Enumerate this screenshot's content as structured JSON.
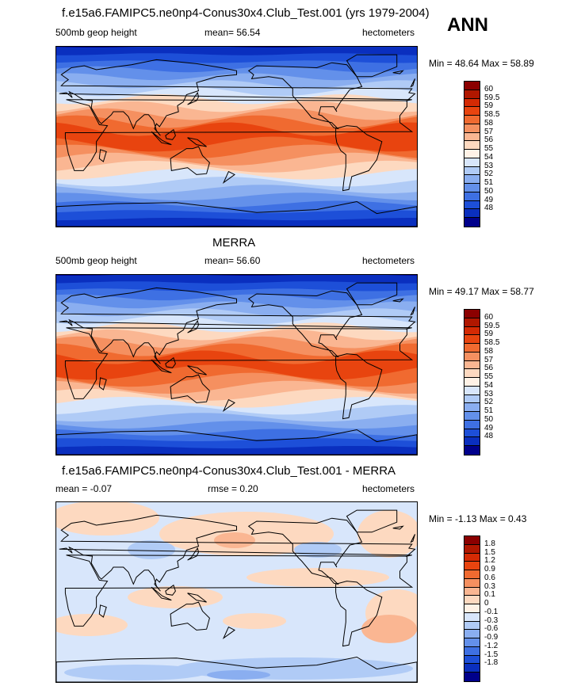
{
  "season": "ANN",
  "panel1": {
    "title": "f.e15a6.FAMIPC5.ne0np4-Conus30x4.Club_Test.001 (yrs 1979-2004)",
    "variable": "500mb geop height",
    "mean_text": "mean=  56.54",
    "units": "hectometers",
    "minmax": "Min = 48.64 Max = 58.89"
  },
  "panel2": {
    "title": "MERRA",
    "variable": "500mb geop height",
    "mean_text": "mean=  56.60",
    "units": "hectometers",
    "minmax": "Min = 49.17 Max = 58.77"
  },
  "panel3": {
    "title": "f.e15a6.FAMIPC5.ne0np4-Conus30x4.Club_Test.001 - MERRA",
    "mean_text": "mean =  -0.07",
    "rmse_text": "rmse =   0.20",
    "units": "hectometers",
    "minmax": "Min =  -1.13 Max =   0.43"
  },
  "colorbar_abs": {
    "labels": [
      "60",
      "59.5",
      "59",
      "58.5",
      "58",
      "57",
      "56",
      "55",
      "54",
      "53",
      "52",
      "51",
      "50",
      "49",
      "48"
    ],
    "colors": [
      "#8b0000",
      "#b01700",
      "#d42a04",
      "#e8440f",
      "#f06a30",
      "#f59060",
      "#fab692",
      "#fdd9c0",
      "#fff2e6",
      "#d8e6fb",
      "#b0cbf6",
      "#8aaef0",
      "#6390ea",
      "#3e70e3",
      "#1d4fd8",
      "#0a2fbf",
      "#00008b"
    ]
  },
  "colorbar_diff": {
    "labels": [
      "1.8",
      "1.5",
      "1.2",
      "0.9",
      "0.6",
      "0.3",
      "0.1",
      "0",
      "-0.1",
      "-0.3",
      "-0.6",
      "-0.9",
      "-1.2",
      "-1.5",
      "-1.8"
    ],
    "colors": [
      "#8b0000",
      "#b01700",
      "#d42a04",
      "#e8440f",
      "#f06a30",
      "#f59060",
      "#fab692",
      "#fdd9c0",
      "#fff2e6",
      "#d8e6fb",
      "#b0cbf6",
      "#8aaef0",
      "#6390ea",
      "#3e70e3",
      "#1d4fd8",
      "#0a2fbf",
      "#00008b"
    ]
  },
  "map_palette": {
    "abs_bands": [
      "#0a2fbf",
      "#1d4fd8",
      "#3e70e3",
      "#6390ea",
      "#8aaef0",
      "#b0cbf6",
      "#d8e6fb",
      "#fdd9c0",
      "#fab692",
      "#f59060",
      "#f06a30",
      "#e8440f"
    ],
    "diff_base": "#d8e6fb",
    "diff_pos": "#fdd9c0",
    "diff_pos2": "#fab692",
    "diff_neg": "#b0cbf6",
    "diff_neg2": "#8aaef0"
  }
}
